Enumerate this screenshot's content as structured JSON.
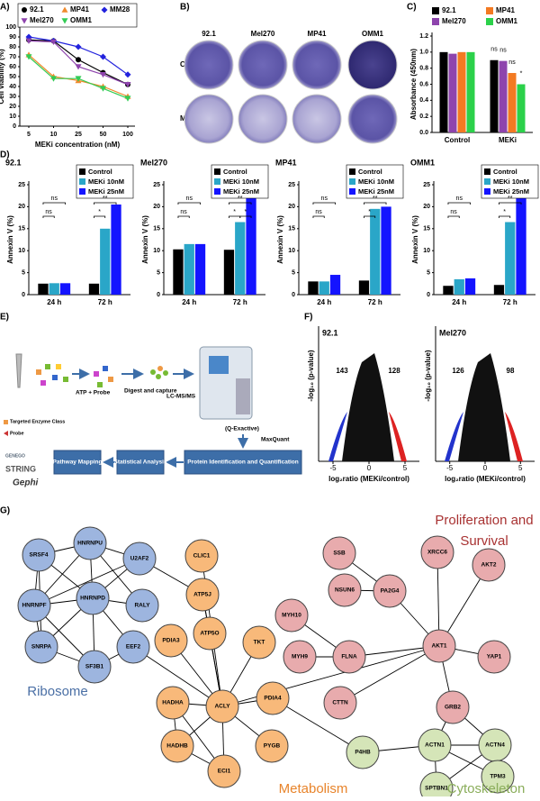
{
  "panels": [
    "A)",
    "B)",
    "C)",
    "D)",
    "E)",
    "F)",
    "G)"
  ],
  "chart_data": [
    {
      "type": "line",
      "xlabel": "MEKi concentration (nM)",
      "ylabel": "Cell viability (%)",
      "categories": [
        "5",
        "10",
        "25",
        "50",
        "100"
      ],
      "ylim": [
        0,
        100
      ],
      "yticks": [
        0,
        10,
        20,
        30,
        40,
        50,
        60,
        70,
        80,
        90,
        100
      ],
      "series": [
        {
          "name": "92.1",
          "color": "#000000",
          "marker": "circle",
          "values": [
            87,
            86,
            67,
            54,
            42
          ]
        },
        {
          "name": "MP41",
          "color": "#f08a2c",
          "marker": "triangle",
          "values": [
            72,
            50,
            46,
            40,
            30
          ]
        },
        {
          "name": "MM28",
          "color": "#2222dd",
          "marker": "diamond",
          "values": [
            90,
            86,
            80,
            70,
            52
          ]
        },
        {
          "name": "Mel270",
          "color": "#8e44ad",
          "marker": "triangle-down",
          "values": [
            86,
            85,
            60,
            52,
            42
          ]
        },
        {
          "name": "OMM1",
          "color": "#33cc55",
          "marker": "triangle-down",
          "values": [
            70,
            48,
            48,
            38,
            28
          ]
        }
      ]
    },
    {
      "type": "bar",
      "ylabel": "Absorbance (450nm)",
      "categories": [
        "Control",
        "MEKi"
      ],
      "ylim": [
        0,
        1.2
      ],
      "yticks": [
        {
          "value": 0,
          "label": "0.0"
        },
        {
          "value": 0.2,
          "label": "0.2"
        },
        {
          "value": 0.4,
          "label": "0.4"
        },
        {
          "value": 0.6,
          "label": "0.6"
        },
        {
          "value": 0.8,
          "label": "0.8"
        },
        {
          "value": 1,
          "label": "1.0"
        },
        {
          "value": 1.2,
          "label": "1.2"
        }
      ],
      "series": [
        {
          "name": "92.1",
          "color": "#000000",
          "values": [
            1.0,
            0.9
          ]
        },
        {
          "name": "Mel270",
          "color": "#8e44ad",
          "values": [
            0.98,
            0.89
          ]
        },
        {
          "name": "MP41",
          "color": "#f37a22",
          "values": [
            1.0,
            0.74
          ]
        },
        {
          "name": "OMM1",
          "color": "#2bd14a",
          "values": [
            1.0,
            0.6
          ]
        }
      ],
      "annotations": [
        "ns",
        "ns",
        "ns",
        "*"
      ]
    },
    {
      "type": "bar",
      "title": "92.1",
      "ylabel": "Annexin V (%)",
      "categories": [
        "24 h",
        "72 h"
      ],
      "ylim": [
        0,
        25
      ],
      "yticks": [
        0,
        5,
        10,
        15,
        20,
        25
      ],
      "series": [
        {
          "name": "Control",
          "color": "#000000",
          "values": [
            2.5,
            2.5
          ]
        },
        {
          "name": "MEKi 10nM",
          "color": "#2aa6c8",
          "values": [
            2.6,
            15
          ]
        },
        {
          "name": "MEKi 25nM",
          "color": "#1414ff",
          "values": [
            2.6,
            20.5
          ]
        }
      ],
      "annotations": [
        "ns",
        "ns",
        "*",
        "**"
      ]
    },
    {
      "type": "bar",
      "title": "Mel270",
      "ylabel": "Annexin V (%)",
      "categories": [
        "24 h",
        "72 h"
      ],
      "ylim": [
        0,
        25
      ],
      "yticks": [
        0,
        5,
        10,
        15,
        20,
        25
      ],
      "series": [
        {
          "name": "Control",
          "color": "#000000",
          "values": [
            10.3,
            10.2
          ]
        },
        {
          "name": "MEKi 10nM",
          "color": "#2aa6c8",
          "values": [
            11.5,
            16.5
          ]
        },
        {
          "name": "MEKi 25nM",
          "color": "#1414ff",
          "values": [
            11.5,
            22.3
          ]
        }
      ],
      "annotations": [
        "ns",
        "ns",
        "*",
        "**",
        "*"
      ]
    },
    {
      "type": "bar",
      "title": "MP41",
      "ylabel": "Annexin V (%)",
      "categories": [
        "24 h",
        "72 h"
      ],
      "ylim": [
        0,
        25
      ],
      "yticks": [
        0,
        5,
        10,
        15,
        20,
        25
      ],
      "series": [
        {
          "name": "Control",
          "color": "#000000",
          "values": [
            3,
            3.2
          ]
        },
        {
          "name": "MEKi 10nM",
          "color": "#2aa6c8",
          "values": [
            3,
            19.5
          ]
        },
        {
          "name": "MEKi 25nM",
          "color": "#1414ff",
          "values": [
            4.5,
            20
          ]
        }
      ],
      "annotations": [
        "ns",
        "ns",
        "*",
        "**"
      ]
    },
    {
      "type": "bar",
      "title": "OMM1",
      "ylabel": "Annexin V (%)",
      "categories": [
        "24 h",
        "72 h"
      ],
      "ylim": [
        0,
        25
      ],
      "yticks": [
        0,
        5,
        10,
        15,
        20,
        25
      ],
      "series": [
        {
          "name": "Control",
          "color": "#000000",
          "values": [
            2,
            2.2
          ]
        },
        {
          "name": "MEKi 10nM",
          "color": "#2aa6c8",
          "values": [
            3.5,
            16.5
          ]
        },
        {
          "name": "MEKi 25nM",
          "color": "#1414ff",
          "values": [
            3.7,
            22
          ]
        }
      ],
      "annotations": [
        "ns",
        "ns",
        "*",
        "**"
      ]
    },
    {
      "type": "scatter",
      "title": "92.1",
      "xlabel": "log₂ratio (MEKi/control)",
      "ylabel": "-log₁₀ (p-value)",
      "xlim": [
        -7,
        7
      ],
      "xticks": [
        -5,
        0,
        5
      ],
      "annotations": [
        "143",
        "128"
      ]
    },
    {
      "type": "scatter",
      "title": "Mel270",
      "xlabel": "log₂ratio (MEKi/control)",
      "ylabel": "-log₁₀ (p-value)",
      "xlim": [
        -7,
        7
      ],
      "xticks": [
        -5,
        0,
        5
      ],
      "annotations": [
        "126",
        "98"
      ]
    }
  ],
  "plates": {
    "columns": [
      "92.1",
      "Mel270",
      "MP41",
      "OMM1"
    ],
    "rows": [
      "Control",
      "MEKi"
    ]
  },
  "workflow": {
    "steps": [
      "ATP + Probe",
      "Digest and capture",
      "LC-MS/MS",
      "(Q-Exactive)",
      "MaxQuant"
    ],
    "boxes": [
      "Protein Identification and Quantification",
      "Statistical Analysis",
      "Pathway Mapping"
    ],
    "legend": [
      "Targeted Enzyme Class",
      "Probe"
    ],
    "logos": [
      "GENEGO",
      "STRING",
      "Gephi"
    ]
  },
  "network": {
    "groups": [
      {
        "label": [
          "Ribosome"
        ],
        "color": "#9db5df",
        "text_color": "#4a6fa5",
        "nodes": [
          "SRSF4",
          "HNRNPU",
          "U2AF2",
          "HNRNPF",
          "HNRNPD",
          "RALY",
          "SNRPA",
          "EEF2",
          "SF3B1"
        ]
      },
      {
        "label": [
          "Metabolism"
        ],
        "color": "#f8b97a",
        "text_color": "#e8842b",
        "nodes": [
          "CLIC1",
          "ATP5J",
          "ATP5O",
          "PDIA3",
          "TKT",
          "HADHA",
          "ACLY",
          "PDIA4",
          "HADHB",
          "ECI1",
          "PYGB"
        ]
      },
      {
        "label": [
          "Proliferation and",
          "Survival"
        ],
        "color": "#e8abad",
        "text_color": "#a83232",
        "nodes": [
          "SSB",
          "NSUN6",
          "PA2G4",
          "XRCC6",
          "AKT2",
          "MYH10",
          "MYH9",
          "FLNA",
          "AKT1",
          "YAP1",
          "CTTN",
          "GRB2"
        ]
      },
      {
        "label": [
          "Cytoskeleton"
        ],
        "color": "#d5e5b8",
        "text_color": "#8aad5a",
        "nodes": [
          "ACTN1",
          "ACTN4",
          "P4HB",
          "TPM3",
          "SPTBN1"
        ]
      }
    ]
  }
}
